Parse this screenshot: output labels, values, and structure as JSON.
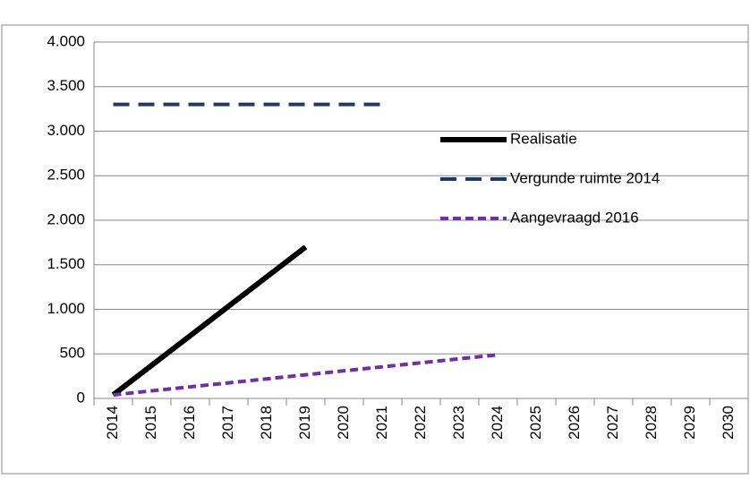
{
  "chart_data": {
    "type": "line",
    "categories": [
      "2014",
      "2015",
      "2016",
      "2017",
      "2018",
      "2019",
      "2020",
      "2021",
      "2022",
      "2023",
      "2024",
      "2025",
      "2026",
      "2027",
      "2028",
      "2029",
      "2030"
    ],
    "series": [
      {
        "name": "Realisatie",
        "color": "#000000",
        "dash": "solid",
        "values": [
          40,
          372,
          704,
          1036,
          1368,
          1700,
          null,
          null,
          null,
          null,
          null,
          null,
          null,
          null,
          null,
          null,
          null
        ]
      },
      {
        "name": "Vergunde ruimte 2014",
        "color": "#1f3864",
        "dash": "long",
        "values": [
          3300,
          3300,
          3300,
          3300,
          3300,
          3300,
          3300,
          3300,
          null,
          null,
          null,
          null,
          null,
          null,
          null,
          null,
          null
        ]
      },
      {
        "name": "Aangevraagd 2016",
        "color": "#7030a0",
        "dash": "short",
        "values": [
          40,
          85,
          130,
          175,
          220,
          265,
          310,
          355,
          400,
          445,
          490,
          null,
          null,
          null,
          null,
          null,
          null
        ]
      }
    ],
    "ylim": [
      0,
      4000
    ],
    "yticks": [
      0,
      500,
      {
        "value": 1000,
        "label": "1.000"
      },
      {
        "value": 1500,
        "label": "1.500"
      },
      {
        "value": 2000,
        "label": "2.000"
      },
      {
        "value": 2500,
        "label": "2.500"
      },
      {
        "value": 3000,
        "label": "3.000"
      },
      {
        "value": 3500,
        "label": "3.500"
      },
      {
        "value": 4000,
        "label": "4.000"
      }
    ],
    "grid": true,
    "legend": "right"
  }
}
